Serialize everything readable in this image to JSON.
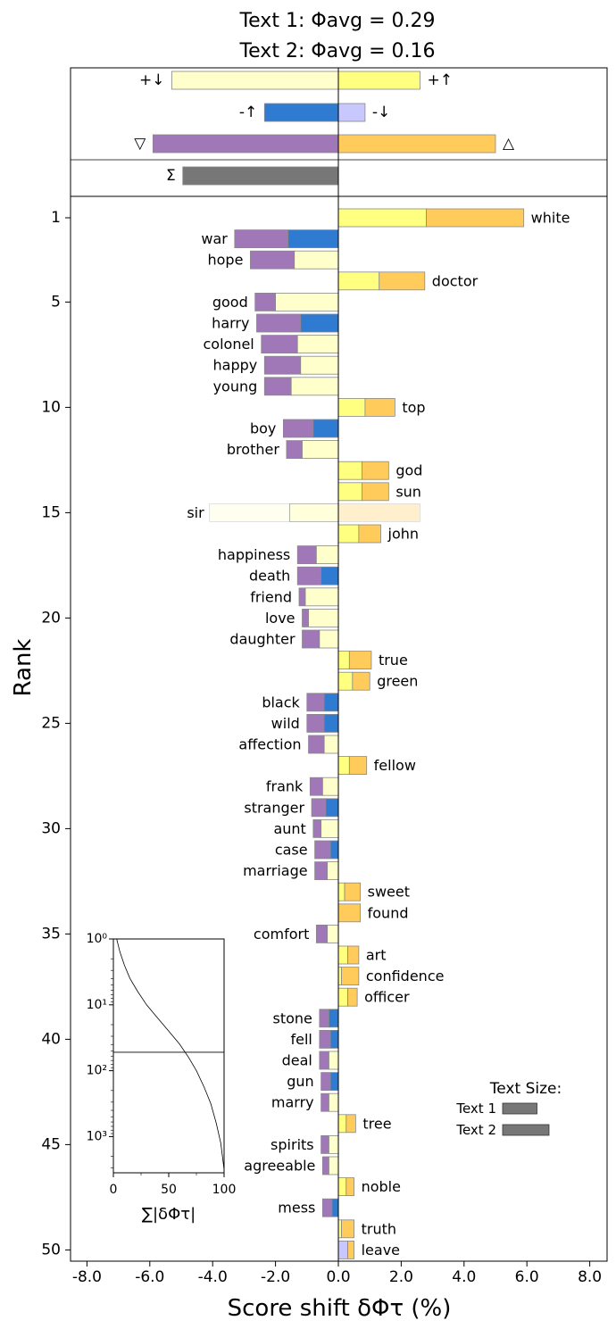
{
  "chart_data": {
    "type": "bar",
    "title_line1": "Text 1: Φavg = 0.29",
    "title_line2": "Text 2: Φavg = 0.16",
    "xlabel": "Score shift δΦτ (%)",
    "ylabel": "Rank",
    "xlim": [
      -8.5,
      8.5
    ],
    "xticks": [
      "-8.0",
      "-6.0",
      "-4.0",
      "-2.0",
      "0.0",
      "2.0",
      "4.0",
      "6.0",
      "8.0"
    ],
    "yticks": [
      "1",
      "5",
      "10",
      "15",
      "20",
      "25",
      "30",
      "35",
      "40",
      "45",
      "50"
    ],
    "colors": {
      "pos_up": "#ffff80",
      "pos_down": "#ffffcc",
      "neg_up": "#2f7bd1",
      "neg_down": "#c8c8ff",
      "neg_total": "#a078b8",
      "pos_total": "#ffcc5c",
      "sigma": "#777777"
    },
    "summary": [
      {
        "label_left": "+↓",
        "label_right": "+↑",
        "left": -5.3,
        "right": 2.6,
        "left_color": "pos_down",
        "right_color": "pos_up"
      },
      {
        "label_left": "-↑",
        "label_right": "-↓",
        "left": -2.35,
        "right": 0.85,
        "left_color": "neg_up",
        "right_color": "neg_down"
      },
      {
        "label_left": "▽",
        "label_right": "△",
        "left": -5.9,
        "right": 5.0,
        "left_color": "neg_total",
        "right_color": "pos_total"
      },
      {
        "label_left": "Σ",
        "label_right": "",
        "left": -4.95,
        "right": 0,
        "left_color": "sigma",
        "right_color": "sigma"
      }
    ],
    "words": [
      {
        "rank": 1,
        "word": "white",
        "type": "pos",
        "c": 2.8,
        "t": 5.9
      },
      {
        "rank": 2,
        "word": "war",
        "type": "neg",
        "c": -1.6,
        "t": -3.3
      },
      {
        "rank": 3,
        "word": "hope",
        "type": "neg",
        "c": -1.4,
        "t": -2.8
      },
      {
        "rank": 4,
        "word": "doctor",
        "type": "pos",
        "c": 1.3,
        "t": 2.75
      },
      {
        "rank": 5,
        "word": "good",
        "type": "neg",
        "c": -2.0,
        "t": -2.65
      },
      {
        "rank": 6,
        "word": "harry",
        "type": "neg",
        "c": -1.2,
        "t": -2.6
      },
      {
        "rank": 7,
        "word": "colonel",
        "type": "neg",
        "c": -1.3,
        "t": -2.45
      },
      {
        "rank": 8,
        "word": "happy",
        "type": "neg",
        "c": -1.2,
        "t": -2.35
      },
      {
        "rank": 9,
        "word": "young",
        "type": "neg",
        "c": -1.5,
        "t": -2.35
      },
      {
        "rank": 10,
        "word": "top",
        "type": "pos",
        "c": 0.85,
        "t": 1.8
      },
      {
        "rank": 11,
        "word": "boy",
        "type": "neg",
        "c": -0.8,
        "t": -1.75
      },
      {
        "rank": 12,
        "word": "brother",
        "type": "neg",
        "c": -1.15,
        "t": -1.65
      },
      {
        "rank": 13,
        "word": "god",
        "type": "pos",
        "c": 0.75,
        "t": 1.6
      },
      {
        "rank": 14,
        "word": "sun",
        "type": "pos",
        "c": 0.75,
        "t": 1.6
      },
      {
        "rank": 15,
        "word": "sir",
        "type": "neg",
        "c": -1.55,
        "t": -4.1,
        "faded": true,
        "pos_extra": 2.6
      },
      {
        "rank": 16,
        "word": "john",
        "type": "pos",
        "c": 0.65,
        "t": 1.35
      },
      {
        "rank": 17,
        "word": "happiness",
        "type": "neg",
        "c": -0.7,
        "t": -1.3
      },
      {
        "rank": 18,
        "word": "death",
        "type": "neg",
        "c": -0.55,
        "t": -1.3
      },
      {
        "rank": 19,
        "word": "friend",
        "type": "neg",
        "c": -1.05,
        "t": -1.25
      },
      {
        "rank": 20,
        "word": "love",
        "type": "neg",
        "c": -0.95,
        "t": -1.15
      },
      {
        "rank": 21,
        "word": "daughter",
        "type": "neg",
        "c": -0.6,
        "t": -1.15
      },
      {
        "rank": 22,
        "word": "true",
        "type": "pos",
        "c": 0.35,
        "t": 1.05
      },
      {
        "rank": 23,
        "word": "green",
        "type": "pos",
        "c": 0.45,
        "t": 1.0
      },
      {
        "rank": 24,
        "word": "black",
        "type": "neg",
        "c": -0.45,
        "t": -1.0
      },
      {
        "rank": 25,
        "word": "wild",
        "type": "neg",
        "c": -0.45,
        "t": -1.0
      },
      {
        "rank": 26,
        "word": "affection",
        "type": "neg",
        "c": -0.45,
        "t": -0.95
      },
      {
        "rank": 27,
        "word": "fellow",
        "type": "pos",
        "c": 0.35,
        "t": 0.9
      },
      {
        "rank": 28,
        "word": "frank",
        "type": "neg",
        "c": -0.5,
        "t": -0.9
      },
      {
        "rank": 29,
        "word": "stranger",
        "type": "neg",
        "c": -0.4,
        "t": -0.85
      },
      {
        "rank": 30,
        "word": "aunt",
        "type": "neg",
        "c": -0.55,
        "t": -0.8
      },
      {
        "rank": 31,
        "word": "case",
        "type": "neg",
        "c": -0.25,
        "t": -0.75
      },
      {
        "rank": 32,
        "word": "marriage",
        "type": "neg",
        "c": -0.35,
        "t": -0.75
      },
      {
        "rank": 33,
        "word": "sweet",
        "type": "pos",
        "c": 0.2,
        "t": 0.7
      },
      {
        "rank": 34,
        "word": "found",
        "type": "pos",
        "c": 0.0,
        "t": 0.7
      },
      {
        "rank": 35,
        "word": "comfort",
        "type": "neg",
        "c": -0.35,
        "t": -0.7
      },
      {
        "rank": 36,
        "word": "art",
        "type": "pos",
        "c": 0.3,
        "t": 0.65
      },
      {
        "rank": 37,
        "word": "confidence",
        "type": "pos",
        "c": 0.1,
        "t": 0.65
      },
      {
        "rank": 38,
        "word": "officer",
        "type": "pos",
        "c": 0.3,
        "t": 0.6
      },
      {
        "rank": 39,
        "word": "stone",
        "type": "neg",
        "c": -0.3,
        "t": -0.6
      },
      {
        "rank": 40,
        "word": "fell",
        "type": "neg",
        "c": -0.25,
        "t": -0.6
      },
      {
        "rank": 41,
        "word": "deal",
        "type": "neg",
        "c": -0.3,
        "t": -0.6
      },
      {
        "rank": 42,
        "word": "gun",
        "type": "neg",
        "c": -0.25,
        "t": -0.55
      },
      {
        "rank": 43,
        "word": "marry",
        "type": "neg",
        "c": -0.3,
        "t": -0.55
      },
      {
        "rank": 44,
        "word": "tree",
        "type": "pos",
        "c": 0.25,
        "t": 0.55
      },
      {
        "rank": 45,
        "word": "spirits",
        "type": "neg",
        "c": -0.3,
        "t": -0.55
      },
      {
        "rank": 46,
        "word": "agreeable",
        "type": "neg",
        "c": -0.3,
        "t": -0.5
      },
      {
        "rank": 47,
        "word": "noble",
        "type": "pos",
        "c": 0.25,
        "t": 0.5
      },
      {
        "rank": 48,
        "word": "mess",
        "type": "neg",
        "c": -0.2,
        "t": -0.5
      },
      {
        "rank": 49,
        "word": "truth",
        "type": "pos",
        "c": 0.1,
        "t": 0.5
      },
      {
        "rank": 50,
        "word": "leave",
        "type": "pos",
        "c": 0.3,
        "t": 0.5,
        "c_color": "neg_down"
      }
    ],
    "legend": {
      "title": "Text Size:",
      "items": [
        {
          "label": "Text 1",
          "value": 1.0
        },
        {
          "label": "Text 2",
          "value": 1.35
        }
      ]
    },
    "inset": {
      "type": "line",
      "yscale": "log",
      "xlabel": "∑|δΦτ|",
      "xticks": [
        "0",
        "50",
        "100"
      ],
      "yticks": [
        "10⁰",
        "10¹",
        "10²",
        "10³"
      ],
      "xlim": [
        0,
        100
      ],
      "ylim_log": [
        0,
        3.55
      ],
      "hline_log": 1.72,
      "curve": [
        [
          3,
          0.0
        ],
        [
          6,
          0.2
        ],
        [
          10,
          0.4
        ],
        [
          15,
          0.6
        ],
        [
          22,
          0.8
        ],
        [
          30,
          1.0
        ],
        [
          40,
          1.2
        ],
        [
          50,
          1.4
        ],
        [
          60,
          1.6
        ],
        [
          68,
          1.8
        ],
        [
          75,
          2.0
        ],
        [
          82,
          2.25
        ],
        [
          88,
          2.5
        ],
        [
          93,
          2.8
        ],
        [
          97,
          3.1
        ],
        [
          100,
          3.5
        ]
      ]
    }
  }
}
